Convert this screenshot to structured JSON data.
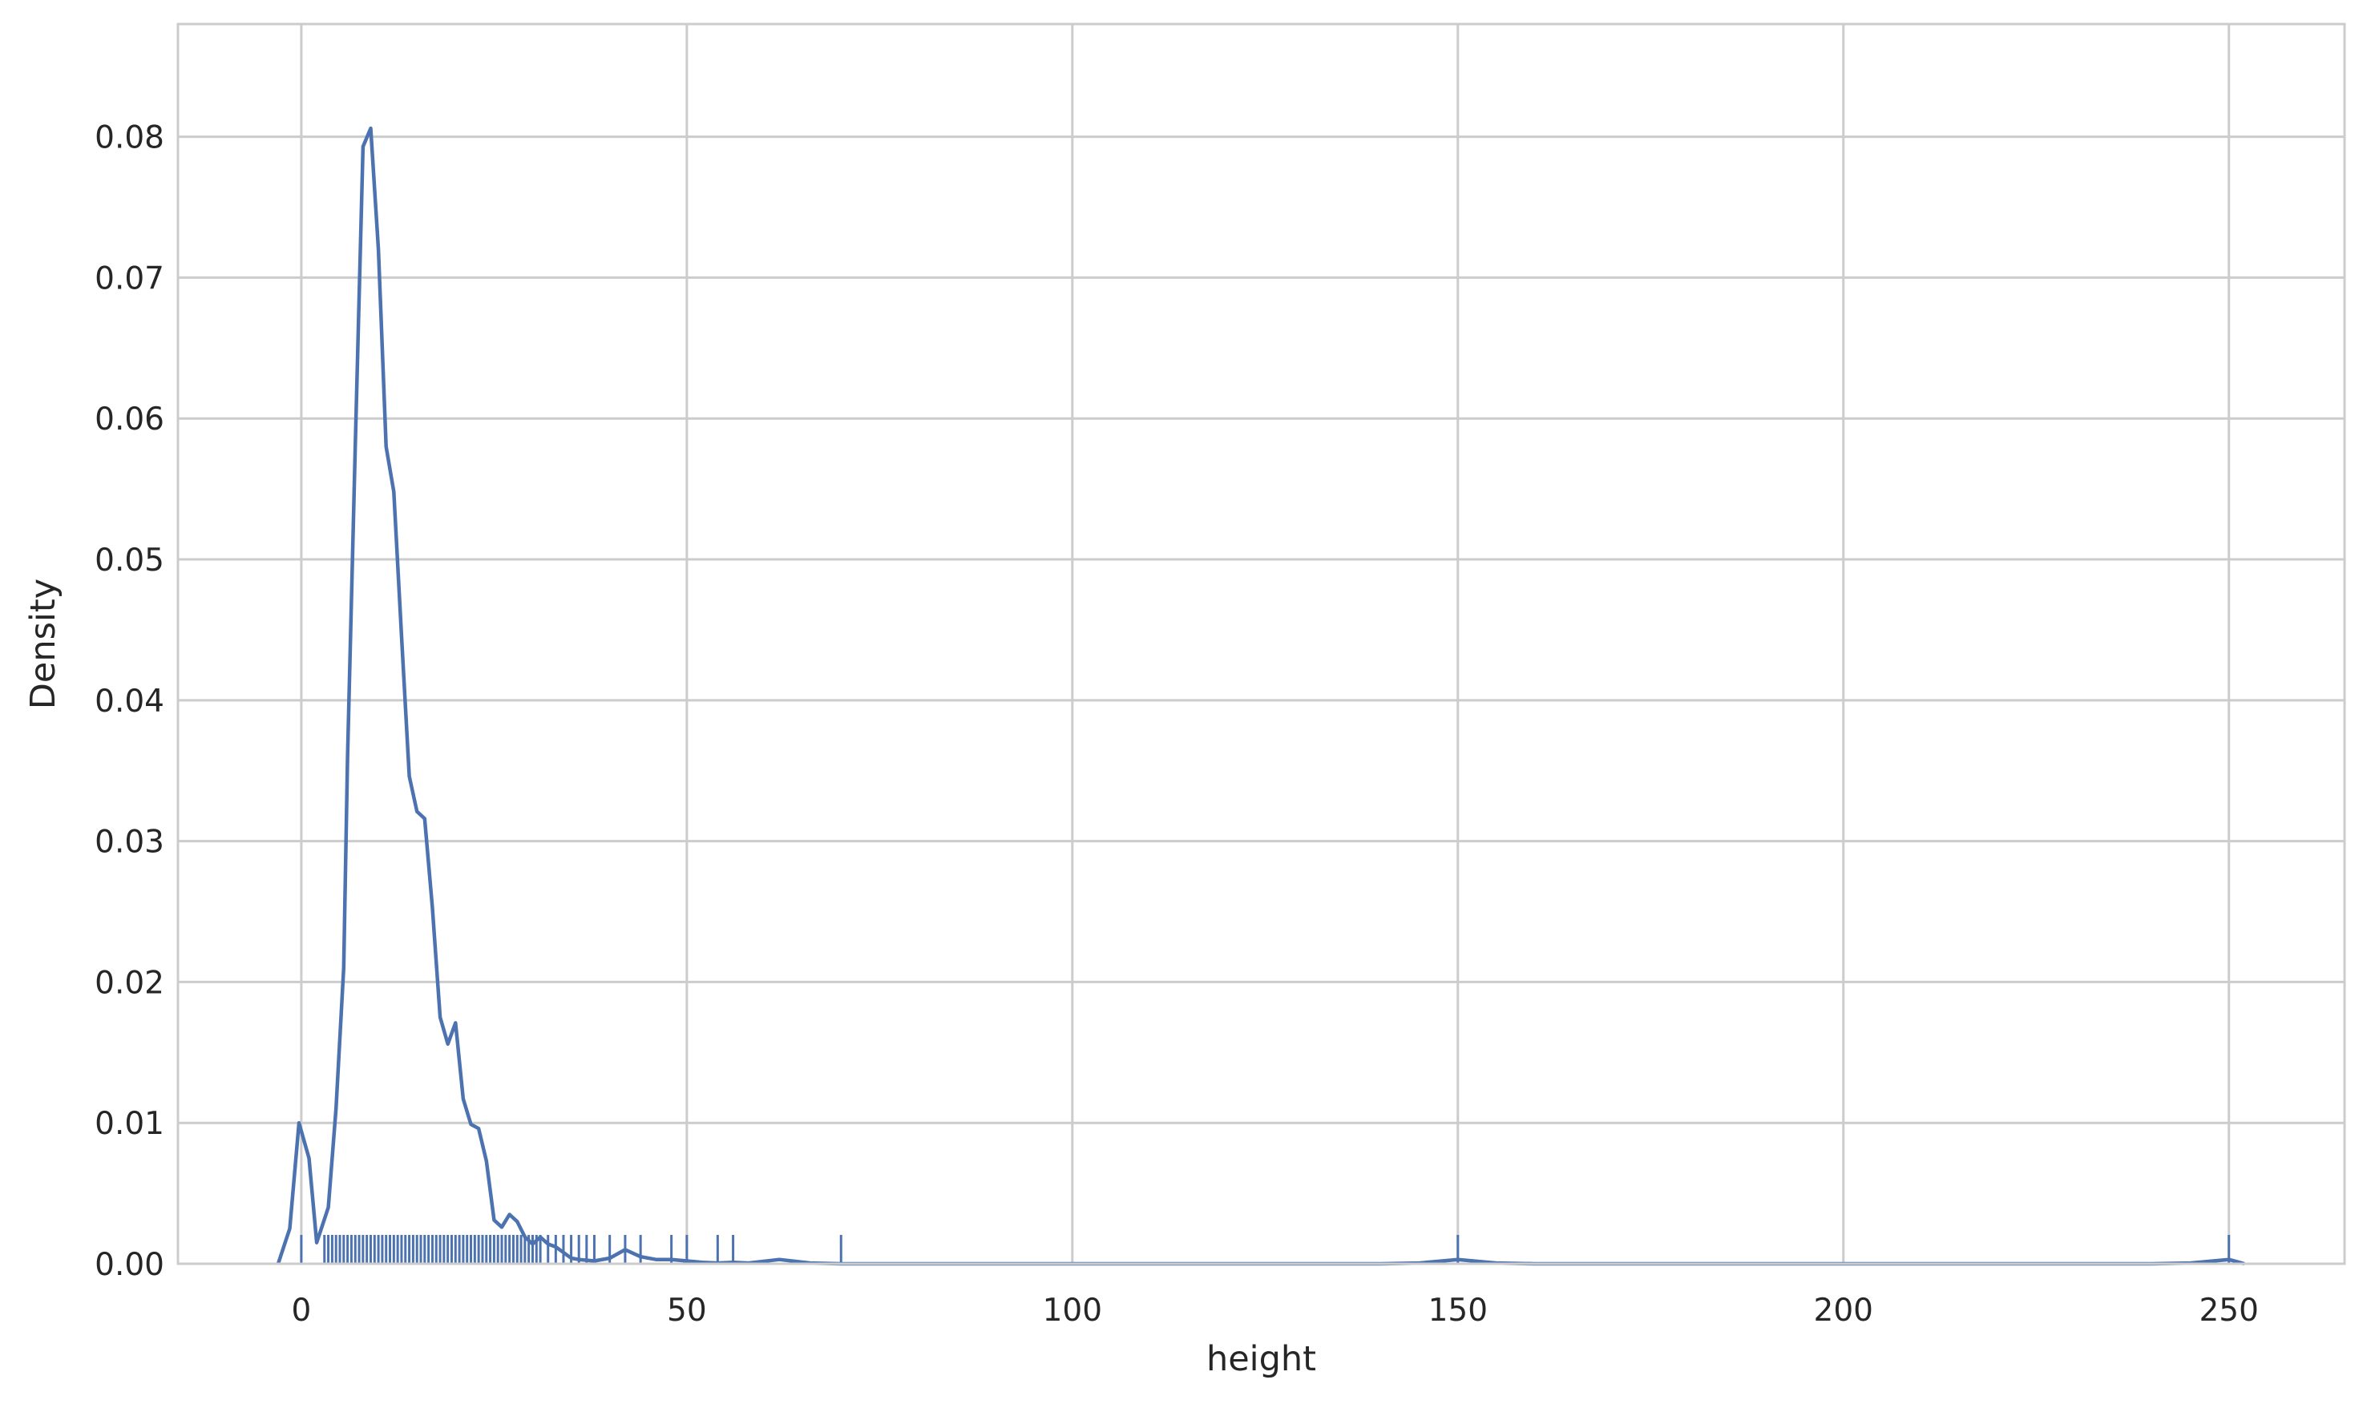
{
  "chart_data": {
    "type": "line",
    "title": "",
    "xlabel": "height",
    "ylabel": "Density",
    "xlim": [
      -16,
      265
    ],
    "ylim": [
      0,
      0.088
    ],
    "x_ticks": [
      0,
      50,
      100,
      150,
      200,
      250
    ],
    "x_tick_labels": [
      "0",
      "50",
      "100",
      "150",
      "200",
      "250"
    ],
    "y_ticks": [
      0,
      0.01,
      0.02,
      0.03,
      0.04,
      0.05,
      0.06,
      0.07,
      0.08
    ],
    "y_tick_labels": [
      "0.00",
      "0.01",
      "0.02",
      "0.03",
      "0.04",
      "0.05",
      "0.06",
      "0.07",
      "0.08"
    ],
    "grid": true,
    "legend": "none",
    "colors": {
      "series": "#4c72b0",
      "grid": "#cccccc",
      "background": "#ffffff"
    },
    "series": [
      {
        "kind": "kde",
        "x": [
          -3,
          -1.5,
          -0.3,
          1,
          2,
          3.5,
          4.5,
          5.5,
          6,
          7,
          8,
          9,
          10,
          11,
          12,
          13,
          14,
          15,
          16,
          17,
          18,
          19,
          20,
          21,
          22,
          23,
          24,
          25,
          26,
          27,
          28,
          29,
          30,
          31,
          32,
          33,
          34,
          35,
          36,
          38,
          40,
          42,
          44,
          46,
          48,
          50,
          52,
          54,
          56,
          58,
          62,
          66,
          70,
          74,
          78,
          100,
          140,
          145,
          148,
          150,
          152,
          155,
          160,
          200,
          240,
          245,
          248,
          250,
          252
        ],
        "y": [
          0,
          0.0025,
          0.01,
          0.0075,
          0.0015,
          0.004,
          0.011,
          0.021,
          0.036,
          0.058,
          0.0793,
          0.0806,
          0.072,
          0.058,
          0.0548,
          0.0445,
          0.0346,
          0.0321,
          0.0316,
          0.0253,
          0.0175,
          0.0156,
          0.0171,
          0.0117,
          0.0099,
          0.0096,
          0.0073,
          0.0031,
          0.0026,
          0.0035,
          0.003,
          0.0019,
          0.0014,
          0.0019,
          0.0014,
          0.0012,
          0.0008,
          0.0004,
          0.0003,
          0.0002,
          0.0004,
          0.001,
          0.0005,
          0.0003,
          0.0003,
          0.0002,
          0.0001,
          5e-05,
          0.0001,
          5e-05,
          0.0003,
          5e-05,
          0,
          0,
          0,
          0,
          0,
          5e-05,
          0.0002,
          0.0003,
          0.0002,
          5e-05,
          0,
          0,
          0,
          5e-05,
          0.0002,
          0.0003,
          0
        ]
      },
      {
        "kind": "rug",
        "x": [
          0,
          3,
          3.5,
          4,
          4.5,
          5,
          5.5,
          6,
          6.5,
          7,
          7.5,
          8,
          8.5,
          9,
          9.5,
          10,
          10.5,
          11,
          11.5,
          12,
          12.5,
          13,
          13.5,
          14,
          14.5,
          15,
          15.5,
          16,
          16.5,
          17,
          17.5,
          18,
          18.5,
          19,
          19.5,
          20,
          20.5,
          21,
          21.5,
          22,
          22.5,
          23,
          23.5,
          24,
          24.5,
          25,
          25.5,
          26,
          26.5,
          27,
          27.5,
          28,
          28.5,
          29,
          29.5,
          30,
          30.5,
          31,
          32,
          33,
          34,
          35,
          36,
          37,
          38,
          40,
          42,
          44,
          48,
          50,
          54,
          56,
          70,
          150,
          250
        ]
      }
    ]
  }
}
